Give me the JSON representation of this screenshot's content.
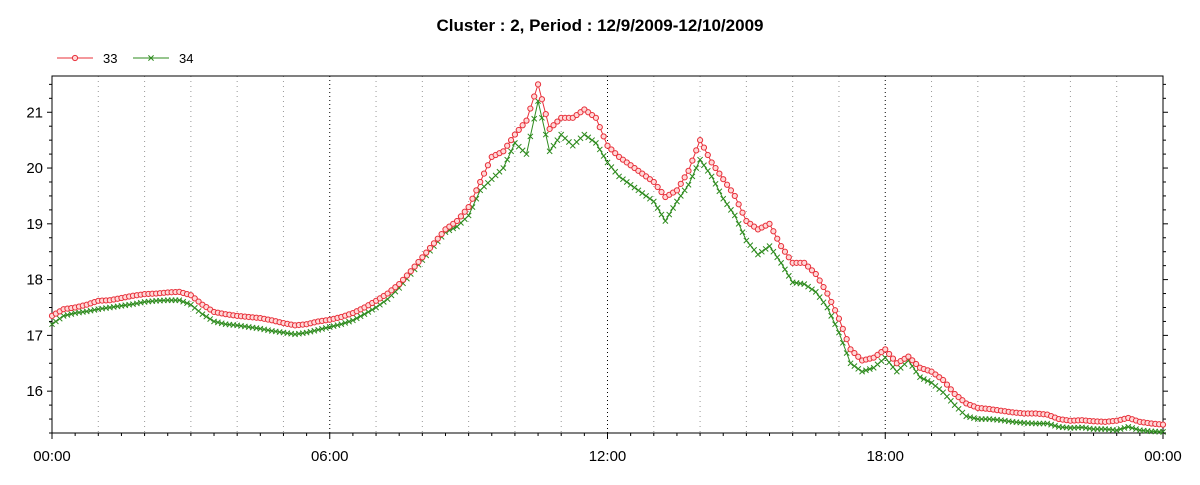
{
  "chart_data": {
    "type": "line",
    "title": "Cluster : 2, Period : 12/9/2009-12/10/2009",
    "xlabel": "",
    "ylabel": "",
    "x_unit": "hours since 12/9/2009 00:00",
    "xlim": [
      0,
      24
    ],
    "ylim": [
      15.25,
      21.65
    ],
    "x_ticks": [
      0,
      6,
      12,
      18,
      24
    ],
    "x_tick_labels": [
      "00:00",
      "06:00",
      "12:00",
      "18:00",
      "00:00"
    ],
    "y_ticks": [
      16,
      17,
      18,
      19,
      20,
      21
    ],
    "y_tick_labels": [
      "16",
      "17",
      "18",
      "19",
      "20",
      "21"
    ],
    "grid": "vertical dotted",
    "legend_position": "top-left",
    "series": [
      {
        "name": "33",
        "color": "#e8303a",
        "marker": "circle",
        "x": [
          0.0,
          0.25,
          0.5,
          0.75,
          1.0,
          1.25,
          1.5,
          1.75,
          2.0,
          2.25,
          2.5,
          2.75,
          3.0,
          3.25,
          3.5,
          3.75,
          4.0,
          4.25,
          4.5,
          4.75,
          5.0,
          5.25,
          5.5,
          5.75,
          6.0,
          6.25,
          6.5,
          6.75,
          7.0,
          7.25,
          7.5,
          7.75,
          8.0,
          8.25,
          8.5,
          8.75,
          9.0,
          9.25,
          9.5,
          9.75,
          10.0,
          10.25,
          10.5,
          10.75,
          11.0,
          11.25,
          11.5,
          11.75,
          12.0,
          12.25,
          12.5,
          12.75,
          13.0,
          13.25,
          13.5,
          13.75,
          14.0,
          14.25,
          14.5,
          14.75,
          15.0,
          15.25,
          15.5,
          15.75,
          16.0,
          16.25,
          16.5,
          16.75,
          17.0,
          17.25,
          17.5,
          17.75,
          18.0,
          18.25,
          18.5,
          18.75,
          19.0,
          19.25,
          19.5,
          19.75,
          20.0,
          20.25,
          20.5,
          20.75,
          21.0,
          21.25,
          21.5,
          21.75,
          22.0,
          22.25,
          22.5,
          22.75,
          23.0,
          23.25,
          23.5,
          23.75,
          24.0
        ],
        "y": [
          17.35,
          17.47,
          17.5,
          17.55,
          17.62,
          17.63,
          17.67,
          17.71,
          17.74,
          17.75,
          17.77,
          17.78,
          17.72,
          17.55,
          17.42,
          17.38,
          17.35,
          17.33,
          17.31,
          17.27,
          17.22,
          17.18,
          17.2,
          17.25,
          17.28,
          17.33,
          17.4,
          17.5,
          17.62,
          17.75,
          17.92,
          18.15,
          18.4,
          18.65,
          18.9,
          19.05,
          19.3,
          19.75,
          20.2,
          20.3,
          20.6,
          20.85,
          21.5,
          20.7,
          20.9,
          20.9,
          21.05,
          20.9,
          20.4,
          20.2,
          20.05,
          19.9,
          19.75,
          19.48,
          19.6,
          19.95,
          20.5,
          20.1,
          19.8,
          19.5,
          19.05,
          18.9,
          19.0,
          18.6,
          18.3,
          18.3,
          18.1,
          17.75,
          17.3,
          16.75,
          16.55,
          16.6,
          16.75,
          16.5,
          16.62,
          16.42,
          16.35,
          16.2,
          15.95,
          15.78,
          15.7,
          15.68,
          15.65,
          15.62,
          15.6,
          15.6,
          15.58,
          15.5,
          15.47,
          15.48,
          15.46,
          15.45,
          15.47,
          15.52,
          15.45,
          15.42,
          15.4
        ]
      },
      {
        "name": "34",
        "color": "#2e8b1e",
        "marker": "x",
        "x": [
          0.0,
          0.25,
          0.5,
          0.75,
          1.0,
          1.25,
          1.5,
          1.75,
          2.0,
          2.25,
          2.5,
          2.75,
          3.0,
          3.25,
          3.5,
          3.75,
          4.0,
          4.25,
          4.5,
          4.75,
          5.0,
          5.25,
          5.5,
          5.75,
          6.0,
          6.25,
          6.5,
          6.75,
          7.0,
          7.25,
          7.5,
          7.75,
          8.0,
          8.25,
          8.5,
          8.75,
          9.0,
          9.25,
          9.5,
          9.75,
          10.0,
          10.25,
          10.5,
          10.75,
          11.0,
          11.25,
          11.5,
          11.75,
          12.0,
          12.25,
          12.5,
          12.75,
          13.0,
          13.25,
          13.5,
          13.75,
          14.0,
          14.25,
          14.5,
          14.75,
          15.0,
          15.25,
          15.5,
          15.75,
          16.0,
          16.25,
          16.5,
          16.75,
          17.0,
          17.25,
          17.5,
          17.75,
          18.0,
          18.25,
          18.5,
          18.75,
          19.0,
          19.25,
          19.5,
          19.75,
          20.0,
          20.25,
          20.5,
          20.75,
          21.0,
          21.25,
          21.5,
          21.75,
          22.0,
          22.25,
          22.5,
          22.75,
          23.0,
          23.25,
          23.5,
          23.75,
          24.0
        ],
        "y": [
          17.2,
          17.35,
          17.4,
          17.43,
          17.47,
          17.5,
          17.53,
          17.56,
          17.6,
          17.62,
          17.63,
          17.63,
          17.55,
          17.38,
          17.25,
          17.2,
          17.18,
          17.15,
          17.12,
          17.08,
          17.05,
          17.02,
          17.05,
          17.1,
          17.15,
          17.2,
          17.27,
          17.38,
          17.5,
          17.65,
          17.85,
          18.1,
          18.35,
          18.6,
          18.85,
          18.95,
          19.15,
          19.6,
          19.8,
          20.0,
          20.45,
          20.25,
          21.2,
          20.3,
          20.6,
          20.4,
          20.6,
          20.45,
          20.1,
          19.85,
          19.7,
          19.55,
          19.4,
          19.05,
          19.4,
          19.7,
          20.15,
          19.85,
          19.45,
          19.15,
          18.7,
          18.45,
          18.6,
          18.3,
          17.95,
          17.92,
          17.78,
          17.5,
          17.05,
          16.5,
          16.35,
          16.42,
          16.6,
          16.35,
          16.55,
          16.25,
          16.15,
          15.98,
          15.75,
          15.55,
          15.5,
          15.5,
          15.48,
          15.45,
          15.43,
          15.42,
          15.42,
          15.36,
          15.34,
          15.35,
          15.32,
          15.32,
          15.3,
          15.36,
          15.3,
          15.28,
          15.27
        ]
      }
    ]
  }
}
